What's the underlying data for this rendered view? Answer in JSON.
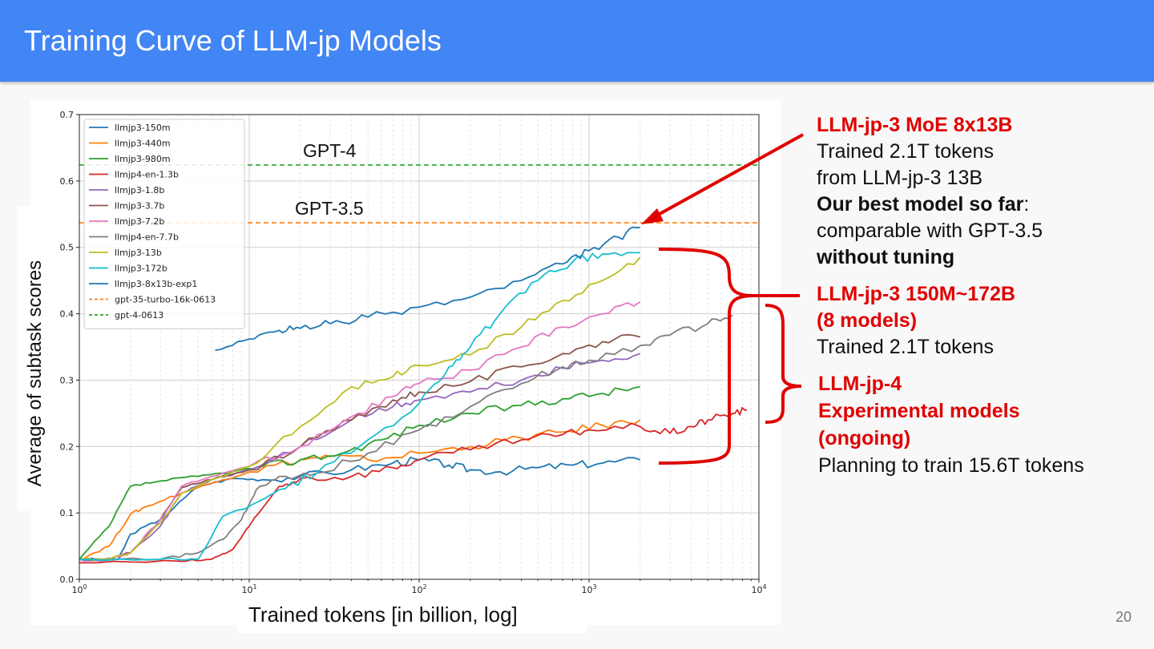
{
  "slide": {
    "title": "Training Curve of LLM-jp Models",
    "page_number": "20"
  },
  "annotations": {
    "moe": {
      "heading": "LLM-jp-3 MoE 8x13B",
      "line1": "Trained 2.1T tokens",
      "line2": "from LLM-jp-3 13B",
      "line3_bold": "Our best model so far",
      "line3_rest": ":",
      "line4": "comparable with GPT-3.5",
      "line5_bold": "without tuning"
    },
    "llmjp3": {
      "heading1": "LLM-jp-3 150M~172B",
      "heading2": "(8 models)",
      "line1": "Trained 2.1T tokens"
    },
    "llmjp4": {
      "heading1": "LLM-jp-4",
      "heading2": "Experimental models",
      "heading3": "(ongoing)",
      "line1": "Planning to train 15.6T tokens"
    },
    "colors": {
      "red": "#e00000"
    }
  },
  "chart_data": {
    "type": "line",
    "xscale": "log",
    "xlim": [
      1,
      10000
    ],
    "ylim": [
      0,
      0.7
    ],
    "xlabel": "Trained tokens [in billion, log]",
    "ylabel": "Average of subtask scores",
    "xticks": [
      "10^0",
      "10^1",
      "10^2",
      "10^3",
      "10^4"
    ],
    "yticks": [
      "0.0",
      "0.1",
      "0.2",
      "0.3",
      "0.4",
      "0.5",
      "0.6",
      "0.7"
    ],
    "grid": true,
    "legend_position": "top-left",
    "reference_labels": [
      "GPT-4",
      "GPT-3.5"
    ],
    "series": [
      {
        "name": "llmjp3-150m",
        "color": "#1f77b4",
        "style": "solid",
        "points": [
          [
            1,
            0.03
          ],
          [
            1.4,
            0.03
          ],
          [
            1.7,
            0.03
          ],
          [
            2,
            0.068
          ],
          [
            3,
            0.09
          ],
          [
            5,
            0.14
          ],
          [
            8,
            0.152
          ],
          [
            12,
            0.15
          ],
          [
            20,
            0.155
          ],
          [
            40,
            0.165
          ],
          [
            70,
            0.175
          ],
          [
            100,
            0.18
          ],
          [
            150,
            0.172
          ],
          [
            200,
            0.165
          ],
          [
            300,
            0.162
          ],
          [
            500,
            0.168
          ],
          [
            800,
            0.172
          ],
          [
            1200,
            0.175
          ],
          [
            2000,
            0.18
          ]
        ]
      },
      {
        "name": "llmjp3-440m",
        "color": "#ff7f0e",
        "style": "solid",
        "points": [
          [
            1,
            0.03
          ],
          [
            1.5,
            0.05
          ],
          [
            2,
            0.098
          ],
          [
            2.5,
            0.11
          ],
          [
            4,
            0.13
          ],
          [
            7,
            0.15
          ],
          [
            10,
            0.162
          ],
          [
            20,
            0.18
          ],
          [
            30,
            0.185
          ],
          [
            50,
            0.18
          ],
          [
            100,
            0.19
          ],
          [
            200,
            0.2
          ],
          [
            400,
            0.213
          ],
          [
            700,
            0.222
          ],
          [
            1200,
            0.232
          ],
          [
            2000,
            0.24
          ]
        ]
      },
      {
        "name": "llmjp3-980m",
        "color": "#2ca02c",
        "style": "solid",
        "points": [
          [
            1,
            0.03
          ],
          [
            1.5,
            0.08
          ],
          [
            2,
            0.14
          ],
          [
            3,
            0.148
          ],
          [
            5,
            0.155
          ],
          [
            8,
            0.162
          ],
          [
            12,
            0.17
          ],
          [
            20,
            0.18
          ],
          [
            35,
            0.19
          ],
          [
            60,
            0.21
          ],
          [
            100,
            0.232
          ],
          [
            200,
            0.25
          ],
          [
            400,
            0.262
          ],
          [
            700,
            0.272
          ],
          [
            1200,
            0.28
          ],
          [
            2000,
            0.29
          ]
        ]
      },
      {
        "name": "llmjp4-en-1.3b",
        "color": "#d62728",
        "style": "solid",
        "points": [
          [
            1,
            0.025
          ],
          [
            4,
            0.027
          ],
          [
            6,
            0.03
          ],
          [
            8,
            0.045
          ],
          [
            10,
            0.08
          ],
          [
            15,
            0.14
          ],
          [
            20,
            0.152
          ],
          [
            40,
            0.155
          ],
          [
            70,
            0.168
          ],
          [
            100,
            0.18
          ],
          [
            200,
            0.195
          ],
          [
            400,
            0.21
          ],
          [
            700,
            0.218
          ],
          [
            1000,
            0.225
          ],
          [
            2000,
            0.23
          ],
          [
            3000,
            0.22
          ],
          [
            4000,
            0.23
          ],
          [
            5000,
            0.24
          ],
          [
            7000,
            0.25
          ],
          [
            8500,
            0.255
          ]
        ]
      },
      {
        "name": "llmjp3-1.8b",
        "color": "#9467bd",
        "style": "solid",
        "points": [
          [
            1,
            0.03
          ],
          [
            1.5,
            0.03
          ],
          [
            2,
            0.04
          ],
          [
            3,
            0.08
          ],
          [
            4,
            0.13
          ],
          [
            6,
            0.15
          ],
          [
            10,
            0.165
          ],
          [
            20,
            0.2
          ],
          [
            40,
            0.24
          ],
          [
            70,
            0.26
          ],
          [
            100,
            0.27
          ],
          [
            200,
            0.282
          ],
          [
            400,
            0.3
          ],
          [
            700,
            0.318
          ],
          [
            1200,
            0.33
          ],
          [
            2000,
            0.34
          ]
        ]
      },
      {
        "name": "llmjp3-3.7b",
        "color": "#8c564b",
        "style": "solid",
        "points": [
          [
            1,
            0.03
          ],
          [
            1.5,
            0.03
          ],
          [
            2,
            0.04
          ],
          [
            3,
            0.09
          ],
          [
            4,
            0.138
          ],
          [
            6,
            0.15
          ],
          [
            10,
            0.165
          ],
          [
            20,
            0.2
          ],
          [
            40,
            0.24
          ],
          [
            70,
            0.27
          ],
          [
            100,
            0.282
          ],
          [
            200,
            0.298
          ],
          [
            400,
            0.32
          ],
          [
            700,
            0.34
          ],
          [
            1200,
            0.358
          ],
          [
            2000,
            0.365
          ]
        ]
      },
      {
        "name": "llmjp3-7.2b",
        "color": "#e377c2",
        "style": "solid",
        "points": [
          [
            1,
            0.03
          ],
          [
            1.5,
            0.03
          ],
          [
            2,
            0.04
          ],
          [
            3,
            0.09
          ],
          [
            4,
            0.14
          ],
          [
            6,
            0.155
          ],
          [
            10,
            0.17
          ],
          [
            20,
            0.2
          ],
          [
            40,
            0.245
          ],
          [
            70,
            0.275
          ],
          [
            100,
            0.295
          ],
          [
            200,
            0.315
          ],
          [
            400,
            0.35
          ],
          [
            700,
            0.38
          ],
          [
            1200,
            0.4
          ],
          [
            2000,
            0.418
          ]
        ]
      },
      {
        "name": "llmjp4-en-7.7b",
        "color": "#7f7f7f",
        "style": "solid",
        "points": [
          [
            1,
            0.03
          ],
          [
            3,
            0.03
          ],
          [
            5,
            0.04
          ],
          [
            7,
            0.06
          ],
          [
            9,
            0.09
          ],
          [
            11,
            0.135
          ],
          [
            15,
            0.155
          ],
          [
            25,
            0.16
          ],
          [
            50,
            0.19
          ],
          [
            100,
            0.225
          ],
          [
            200,
            0.26
          ],
          [
            400,
            0.295
          ],
          [
            700,
            0.32
          ],
          [
            1000,
            0.33
          ],
          [
            2000,
            0.352
          ],
          [
            3000,
            0.368
          ],
          [
            5000,
            0.385
          ],
          [
            7000,
            0.398
          ]
        ]
      },
      {
        "name": "llmjp3-13b",
        "color": "#bcbd22",
        "style": "solid",
        "points": [
          [
            1,
            0.03
          ],
          [
            1.5,
            0.03
          ],
          [
            2,
            0.04
          ],
          [
            3,
            0.085
          ],
          [
            4,
            0.13
          ],
          [
            6,
            0.15
          ],
          [
            10,
            0.17
          ],
          [
            20,
            0.23
          ],
          [
            40,
            0.29
          ],
          [
            70,
            0.305
          ],
          [
            100,
            0.322
          ],
          [
            200,
            0.338
          ],
          [
            400,
            0.38
          ],
          [
            700,
            0.42
          ],
          [
            1200,
            0.45
          ],
          [
            2000,
            0.485
          ]
        ]
      },
      {
        "name": "llmjp3-172b",
        "color": "#17becf",
        "style": "solid",
        "points": [
          [
            1,
            0.03
          ],
          [
            3,
            0.03
          ],
          [
            5,
            0.03
          ],
          [
            7,
            0.095
          ],
          [
            10,
            0.11
          ],
          [
            15,
            0.135
          ],
          [
            25,
            0.16
          ],
          [
            50,
            0.21
          ],
          [
            100,
            0.265
          ],
          [
            150,
            0.32
          ],
          [
            200,
            0.35
          ],
          [
            300,
            0.4
          ],
          [
            500,
            0.45
          ],
          [
            800,
            0.478
          ],
          [
            1200,
            0.49
          ],
          [
            2000,
            0.492
          ]
        ]
      },
      {
        "name": "llmjp3-8x13b-exp1",
        "color": "#1f77b4",
        "style": "solid",
        "points": [
          [
            6.3,
            0.345
          ],
          [
            10,
            0.362
          ],
          [
            15,
            0.375
          ],
          [
            20,
            0.378
          ],
          [
            30,
            0.385
          ],
          [
            50,
            0.395
          ],
          [
            100,
            0.41
          ],
          [
            200,
            0.425
          ],
          [
            400,
            0.45
          ],
          [
            700,
            0.475
          ],
          [
            1000,
            0.495
          ],
          [
            1500,
            0.515
          ],
          [
            2000,
            0.53
          ]
        ]
      },
      {
        "name": "gpt-35-turbo-16k-0613",
        "color": "#ff7f0e",
        "style": "dashed",
        "value": 0.537
      },
      {
        "name": "gpt-4-0613",
        "color": "#2ca02c",
        "style": "dashed",
        "value": 0.624
      }
    ]
  }
}
